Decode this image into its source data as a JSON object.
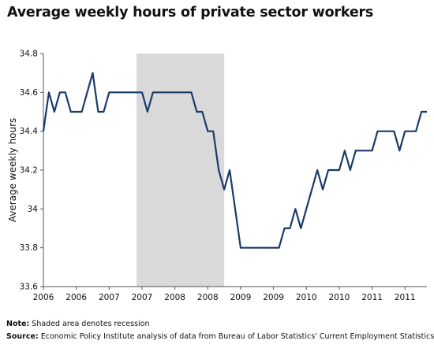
{
  "chart_data": {
    "type": "line",
    "title": "Average weekly hours of private sector workers",
    "ylabel": "Average weekly hours",
    "xlabel": "",
    "ylim": [
      33.6,
      34.8
    ],
    "y_ticks": [
      "33.6",
      "33.8",
      "34",
      "34.2",
      "34.4",
      "34.6",
      "34.8"
    ],
    "x_tick_labels": [
      "2006",
      "2006",
      "2007",
      "2007",
      "2008",
      "2008",
      "2009",
      "2009",
      "2010",
      "2010",
      "2011",
      "2011"
    ],
    "series_color": "#1a3a6b",
    "shade_color": "#d9d9d9",
    "recession_shading": {
      "start_month_index": 17,
      "end_month_index": 33
    },
    "series": [
      {
        "values": [
          34.4,
          34.6,
          34.5,
          34.6,
          34.6,
          34.5,
          34.5,
          34.5,
          34.6,
          34.7,
          34.5,
          34.5,
          34.6,
          34.6,
          34.6,
          34.6,
          34.6,
          34.6,
          34.6,
          34.5,
          34.6,
          34.6,
          34.6,
          34.6,
          34.6,
          34.6,
          34.6,
          34.6,
          34.5,
          34.5,
          34.4,
          34.4,
          34.2,
          34.1,
          34.2,
          34.0,
          33.8,
          33.8,
          33.8,
          33.8,
          33.8,
          33.8,
          33.8,
          33.8,
          33.9,
          33.9,
          34.0,
          33.9,
          34.0,
          34.1,
          34.2,
          34.1,
          34.2,
          34.2,
          34.2,
          34.3,
          34.2,
          34.3,
          34.3,
          34.3,
          34.3,
          34.4,
          34.4,
          34.4,
          34.4,
          34.3,
          34.4,
          34.4,
          34.4,
          34.5,
          34.5
        ]
      }
    ]
  },
  "notes": {
    "note_label": "Note:",
    "note_text": " Shaded area denotes recession",
    "source_label": "Source:",
    "source_text": " Economic Policy Institute analysis of data from Bureau of Labor Statistics' Current Employment Statistics"
  }
}
